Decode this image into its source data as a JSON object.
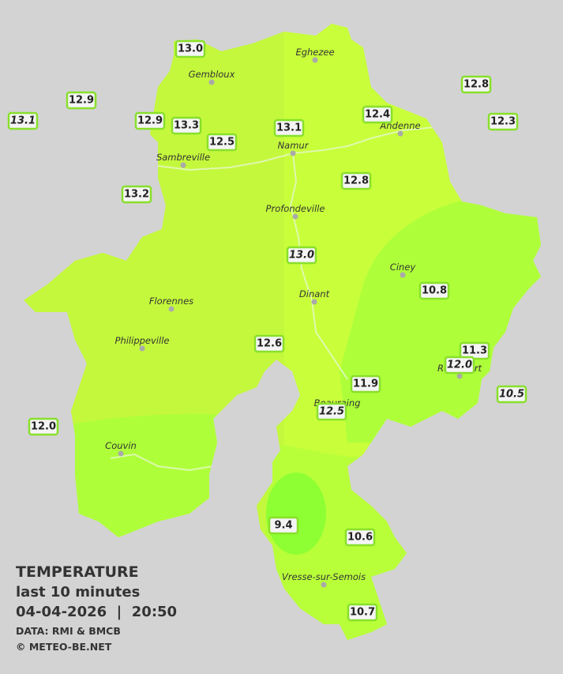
{
  "legend": {
    "title": "TEMPERATURE",
    "subtitle": "last 10 minutes",
    "datetime": "04-04-2026  |  20:50",
    "source": "DATA: RMI & BMCB",
    "copyright": "© METEO-BE.NET"
  },
  "cities": [
    "Eghezee",
    "Gembloux",
    "Andenne",
    "Namur",
    "Sambreville",
    "Profondeville",
    "Ciney",
    "Dinant",
    "Florennes",
    "Philippeville",
    "Rochefort",
    "Beauraing",
    "Couvin",
    "Vresse-sur-Semois"
  ],
  "stations": [
    "13.0",
    "12.9",
    "13.1",
    "12.9",
    "13.3",
    "12.5",
    "13.1",
    "12.4",
    "12.8",
    "12.3",
    "13.2",
    "12.8",
    "13.0",
    "10.8",
    "12.6",
    "11.3",
    "12.0",
    "11.9",
    "12.5",
    "10.5",
    "12.0",
    "9.4",
    "10.6",
    "10.7"
  ]
}
